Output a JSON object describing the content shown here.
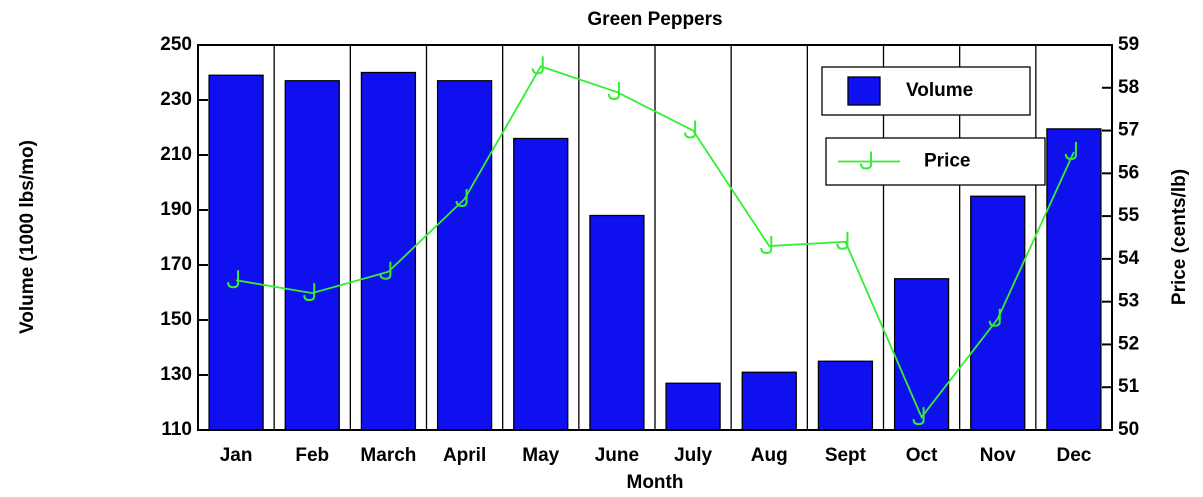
{
  "chart_data": {
    "type": "bar_line",
    "title": "Green Peppers",
    "x_label": "Month",
    "y_label": "Volume (1000 lbs/mo)",
    "y2_label": "Price (cents/lb)",
    "categories": [
      "Jan",
      "Feb",
      "March",
      "April",
      "May",
      "June",
      "July",
      "Aug",
      "Sept",
      "Oct",
      "Nov",
      "Dec"
    ],
    "series": [
      {
        "name": "Volume",
        "type": "bar",
        "color": "#0f10f0",
        "values": [
          239,
          237,
          240,
          237,
          216,
          188,
          127,
          131,
          135,
          165,
          195,
          219.5
        ]
      },
      {
        "name": "Price",
        "type": "line",
        "axis": "y2",
        "color": "#33ee33",
        "values": [
          53.5,
          53.2,
          53.7,
          55.4,
          58.5,
          57.9,
          57.0,
          54.3,
          54.4,
          50.3,
          52.6,
          56.5
        ]
      }
    ],
    "ylim": [
      110,
      250
    ],
    "yticks": [
      110,
      130,
      150,
      170,
      190,
      210,
      230,
      250
    ],
    "y2lim": [
      50,
      59
    ],
    "y2ticks": [
      50,
      51,
      52,
      53,
      54,
      55,
      56,
      57,
      58,
      59
    ],
    "legend": "top-right"
  }
}
